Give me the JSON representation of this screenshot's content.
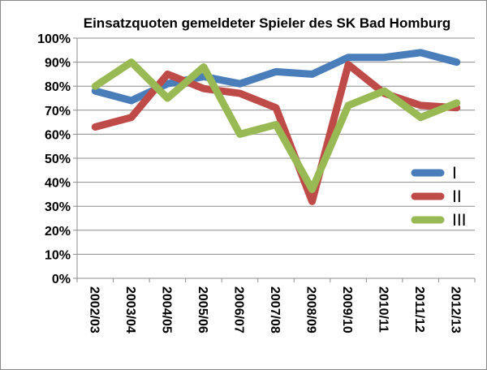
{
  "chart_data": {
    "type": "line",
    "title": "Einsatzquoten  gemeldeter Spieler des SK Bad Homburg",
    "xlabel": "",
    "ylabel": "",
    "categories": [
      "2002/03",
      "2003/04",
      "2004/05",
      "2005/06",
      "2006/07",
      "2007/08",
      "2008/09",
      "2009/10",
      "2010/11",
      "2011/12",
      "2012/13"
    ],
    "ylim": [
      0,
      100
    ],
    "yticks": [
      0,
      10,
      20,
      30,
      40,
      50,
      60,
      70,
      80,
      90,
      100
    ],
    "ytick_labels": [
      "0%",
      "10%",
      "20%",
      "30%",
      "40%",
      "50%",
      "60%",
      "70%",
      "80%",
      "90%",
      "100%"
    ],
    "grid": true,
    "legend_position": "right",
    "series": [
      {
        "name": "I",
        "color": "#4a7ebb",
        "values": [
          78,
          74,
          81,
          84,
          81,
          86,
          85,
          92,
          92,
          94,
          90
        ]
      },
      {
        "name": "II",
        "color": "#be4b48",
        "values": [
          63,
          67,
          85,
          79,
          77,
          71,
          32,
          89,
          77,
          72,
          71
        ]
      },
      {
        "name": "III",
        "color": "#98b954",
        "values": [
          80,
          90,
          75,
          88,
          60,
          64,
          37,
          72,
          78,
          67,
          73
        ]
      }
    ]
  }
}
